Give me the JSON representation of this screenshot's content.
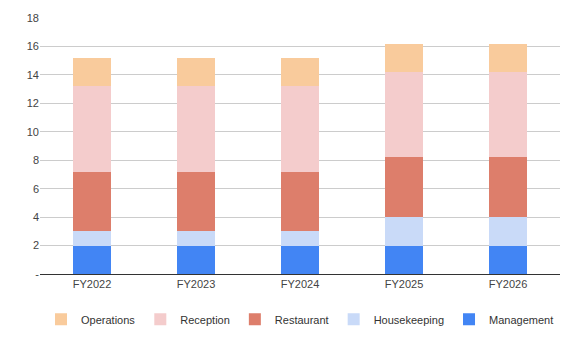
{
  "chart_data": {
    "type": "bar",
    "stacked": true,
    "grid": true,
    "legend": "bottom",
    "categories": [
      "FY2022",
      "FY2023",
      "FY2024",
      "FY2025",
      "FY2026"
    ],
    "series": [
      {
        "name": "Management",
        "color": "#4285f4",
        "values": [
          2,
          2,
          2,
          2,
          2
        ]
      },
      {
        "name": "Housekeeping",
        "color": "#c9daf8",
        "values": [
          1,
          1,
          1,
          2,
          2
        ]
      },
      {
        "name": "Restaurant",
        "color": "#dd7e6b",
        "values": [
          4.2,
          4.2,
          4.2,
          4.2,
          4.2
        ]
      },
      {
        "name": "Reception",
        "color": "#f4cccc",
        "values": [
          6,
          6,
          6,
          6,
          6
        ]
      },
      {
        "name": "Operations",
        "color": "#f9cb9c",
        "values": [
          2,
          2,
          2,
          2,
          2
        ]
      }
    ],
    "ylim": [
      0,
      18
    ],
    "yticks": [
      {
        "value": 0,
        "label": "-"
      },
      2,
      4,
      6,
      8,
      10,
      12,
      14,
      16,
      18
    ]
  }
}
